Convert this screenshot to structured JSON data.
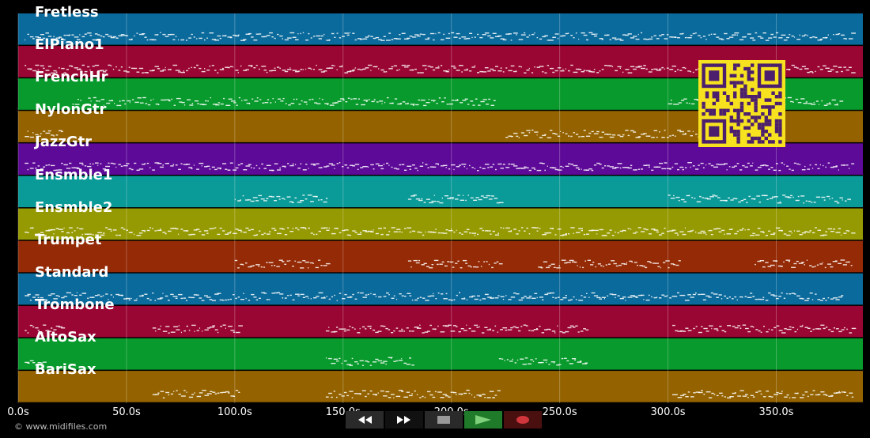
{
  "tracks": [
    {
      "name": "Fretless",
      "color": "#0b6a9c"
    },
    {
      "name": "ElPiano1",
      "color": "#9a0634"
    },
    {
      "name": "FrenchHr",
      "color": "#089a2c"
    },
    {
      "name": "NylonGtr",
      "color": "#946300"
    },
    {
      "name": "JazzGtr",
      "color": "#5e0a98"
    },
    {
      "name": "Ensmble1",
      "color": "#0a9a98"
    },
    {
      "name": "Ensmble2",
      "color": "#969a02"
    },
    {
      "name": "Trumpet",
      "color": "#942a06"
    },
    {
      "name": "Standard",
      "color": "#0b6a9c"
    },
    {
      "name": "Trombone",
      "color": "#9a0634"
    },
    {
      "name": "AltoSax",
      "color": "#089a2c"
    },
    {
      "name": "BariSax",
      "color": "#946300"
    }
  ],
  "timeline": {
    "ticks": [
      "0.0s",
      "50.0s",
      "100.0s",
      "150.0s",
      "200.0s",
      "250.0s",
      "300.0s",
      "350.0s"
    ],
    "tick_values": [
      0,
      50,
      100,
      150,
      200,
      250,
      300,
      350
    ],
    "max_seconds": 390
  },
  "copyright": "© www.midifiles.com",
  "controls": [
    {
      "name": "rewind-button",
      "icon": "rewind-icon"
    },
    {
      "name": "fast-forward-button",
      "icon": "fast-forward-icon"
    },
    {
      "name": "stop-button",
      "icon": "stop-icon"
    },
    {
      "name": "play-button",
      "icon": "play-icon"
    },
    {
      "name": "record-button",
      "icon": "record-icon"
    }
  ],
  "qr_code": {
    "icon": "qr-code-icon",
    "color": "#4b1f6e",
    "background": "#f7e21f"
  }
}
